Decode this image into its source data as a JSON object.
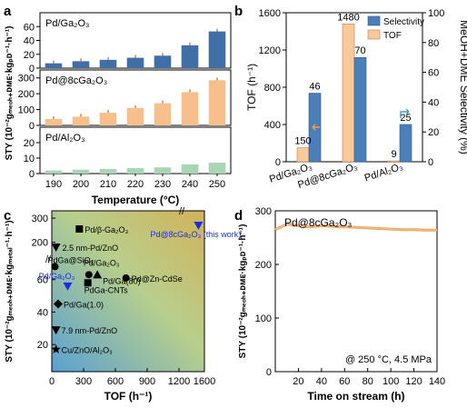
{
  "panel_letters": [
    "a",
    "b",
    "c",
    "d"
  ],
  "chart_data": [
    {
      "panel": "a",
      "type": "bar",
      "xlabel": "Temperature (°C)",
      "ylabel": "STY (10⁻²gₘₑₒₕ₊ᴅᴍᴇ·kgₚᴅ⁻¹·h⁻¹)",
      "ylabel_main": "STY (10",
      "categories": [
        "190",
        "200",
        "210",
        "220",
        "230",
        "240",
        "250"
      ],
      "subplots": [
        {
          "label": "Pd/Ga₂O₃",
          "color": "#3f6fa6",
          "ylim": [
            0,
            80
          ],
          "yticks": [
            "0",
            "20",
            "40",
            "60"
          ],
          "values": [
            7,
            10,
            12,
            15,
            18,
            33,
            53
          ]
        },
        {
          "label": "Pd@8cGa₂O₃",
          "color": "#f5c08b",
          "ylim": [
            0,
            350
          ],
          "yticks": [
            "0",
            "100",
            "200",
            "300"
          ],
          "values": [
            40,
            55,
            80,
            110,
            140,
            210,
            285
          ]
        },
        {
          "label": "Pd/Al₂O₃",
          "color": "#a8d5b4",
          "ylim": [
            0,
            30
          ],
          "yticks": [
            "0",
            "10",
            "20"
          ],
          "values": [
            2,
            2.5,
            3,
            3.5,
            4,
            6,
            7
          ]
        }
      ]
    },
    {
      "panel": "b",
      "type": "bar",
      "categories": [
        "Pd/Ga₂O₃",
        "Pd@8cGa₂O₃",
        "Pd/Al₂O₃"
      ],
      "ylabel": "TOF (h⁻¹)",
      "y2label": "MeOH+DME Selectivity (%)",
      "ylim": [
        0,
        1600
      ],
      "y2lim": [
        0,
        100
      ],
      "yticks": [
        "0",
        "400",
        "800",
        "1200",
        "1600"
      ],
      "y2ticks": [
        "0",
        "20",
        "40",
        "60",
        "80",
        "100"
      ],
      "series": [
        {
          "name": "TOF",
          "color": "#f8c99a",
          "axis": "left",
          "values": [
            150,
            1480,
            9
          ]
        },
        {
          "name": "Selectivity",
          "color": "#4a7fb8",
          "axis": "right",
          "values": [
            46,
            70,
            25
          ]
        }
      ],
      "value_labels": {
        "tof": [
          "150",
          "1480",
          "9"
        ],
        "sel": [
          "46",
          "70",
          "25"
        ]
      },
      "legend": "top-right"
    },
    {
      "panel": "c",
      "type": "scatter",
      "xlabel": "TOF (h⁻¹)",
      "ylabel": "STY (10⁻²gₘₑₒₕ₊ᴅᴍᴇ·kgₘₑₜₐₗ⁻¹·h⁻¹)",
      "xticks": [
        "0",
        "300",
        "600",
        "900",
        "1200",
        "1600"
      ],
      "yticks_lower": [
        "20",
        "40",
        "60"
      ],
      "yticks_upper": [
        "200",
        "300"
      ],
      "points": [
        {
          "label": "Pd/β-Ga₂O₃",
          "x": 260,
          "y": 255,
          "marker": "square"
        },
        {
          "label": "Pd@8cGa₂O₃ (this work)",
          "x": 1480,
          "y": 270,
          "marker": "triangle-down",
          "highlight": true
        },
        {
          "label": "2.5 nm-Pd/ZnO",
          "x": 40,
          "y": 180,
          "marker": "triangle-down"
        },
        {
          "label": "PdGa@SiO₂",
          "x": 30,
          "y": 68,
          "marker": "circle"
        },
        {
          "label": "Pd/Ga₂O₃",
          "x": 150,
          "y": 56,
          "marker": "triangle-down",
          "highlight": true
        },
        {
          "label": "Pd/Ga₂O₃",
          "x": 350,
          "y": 63,
          "marker": "circle"
        },
        {
          "label": "Pd/Ga(80)",
          "x": 430,
          "y": 63,
          "marker": "triangle-up"
        },
        {
          "label": "PdGa-CNTs",
          "x": 340,
          "y": 58,
          "marker": "square"
        },
        {
          "label": "Pd@Zn-CdSe",
          "x": 700,
          "y": 61,
          "marker": "circle"
        },
        {
          "label": "Pd/Ga(1.0)",
          "x": 60,
          "y": 45,
          "marker": "diamond"
        },
        {
          "label": "7.9 nm-Pd/ZnO",
          "x": 40,
          "y": 29,
          "marker": "triangle-down"
        },
        {
          "label": "Cu/ZnO/Al₂O₃",
          "x": 40,
          "y": 17,
          "marker": "star"
        }
      ]
    },
    {
      "panel": "d",
      "type": "line",
      "title": "Pd@8cGa₂O₃",
      "annotation": "@ 250 °C, 4.5 MPa",
      "xlabel": "Time on stream (h)",
      "ylabel": "STY (10⁻²gₘₑₒₕ₊ᴅᴍᴇ·kgₚᴅ⁻¹·h⁻¹)",
      "xlim": [
        0,
        140
      ],
      "ylim": [
        0,
        300
      ],
      "xticks": [
        "20",
        "40",
        "60",
        "80",
        "100",
        "120",
        "140"
      ],
      "yticks": [
        "0",
        "100",
        "200",
        "300"
      ],
      "series": [
        {
          "color": "#f0a35a",
          "x": [
            0,
            5,
            10,
            20,
            30,
            40,
            50,
            60,
            70,
            80,
            90,
            100,
            110,
            120,
            130,
            140
          ],
          "y": [
            265,
            270,
            275,
            272,
            270,
            272,
            271,
            270,
            269,
            268,
            267,
            266,
            265,
            265,
            264,
            264
          ]
        }
      ]
    }
  ]
}
